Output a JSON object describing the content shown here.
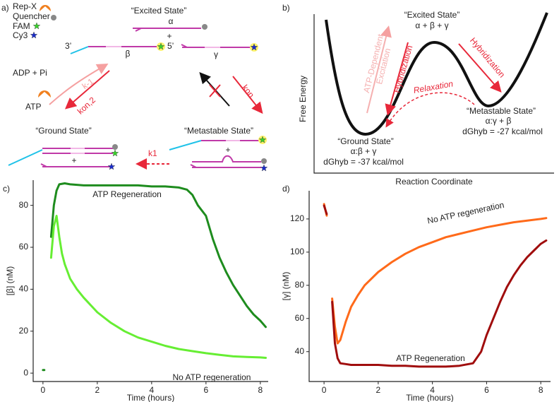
{
  "figure": {
    "panel_a": {
      "label": "a)",
      "legend": [
        "Rep-X",
        "Quencher",
        "FAM",
        "Cy3"
      ],
      "excited_state": "“Excited State”",
      "alpha": "α",
      "plus_top": "+",
      "end3": "3’",
      "beta": "β",
      "end5": "5’",
      "gamma": "γ",
      "adp": "ADP + Pi",
      "atp": "ATP",
      "k_minus1": "k-1",
      "k_on2": "kon,2",
      "k_on": "kon",
      "ground_state": "“Ground State”",
      "metastable_state": "“Metastable State”",
      "plus_left": "+",
      "plus_right": "+",
      "k_1": "k1"
    },
    "panel_b": {
      "label": "b)",
      "excited_state": "“Excited State”",
      "excited_formula": "α + β + γ",
      "excitation": [
        "ATP-Dependent",
        "Excitation"
      ],
      "hybridization_left": "Hybridization",
      "hybridization_right": "Hybridization",
      "relaxation": "Relaxation",
      "metastable_state": "“Metastable State”",
      "metastable_formula": "α:γ + β",
      "metastable_dg": "dGhyb = -27 kcal/mol",
      "ground_state": "“Ground State”",
      "ground_formula": "α:β + γ",
      "ground_dg": "dGhyb = -37 kcal/mol",
      "y_label": "Free Energy",
      "x_label": "Reaction Coordinate"
    }
  },
  "chart_data": [
    {
      "type": "line",
      "panel_label": "c)",
      "x_label": "Time (hours)",
      "y_label": "[β] (nM)",
      "xlim": [
        -0.36,
        8.29
      ],
      "ylim": [
        -4,
        92
      ],
      "xticks": [
        0,
        2,
        4,
        6,
        8
      ],
      "yticks": [
        0,
        20,
        40,
        60,
        80
      ],
      "series": [
        {
          "name": "ATP Regeneration",
          "color": "#1e8c1e",
          "x": [
            0,
            0.05,
            0.2,
            0.3,
            0.4,
            0.5,
            0.6,
            0.8,
            1,
            1.5,
            2,
            2.5,
            3,
            3.5,
            4,
            4.5,
            5,
            5.3,
            5.5,
            5.7,
            6,
            6.25,
            6.5,
            6.75,
            7,
            7.25,
            7.5,
            7.75,
            8,
            8.2
          ],
          "values": [
            1.5,
            1.5,
            null,
            65,
            80,
            87,
            90,
            90.5,
            90,
            89.5,
            89.5,
            89.5,
            89.5,
            89.5,
            89,
            89,
            88.5,
            87.5,
            85,
            80,
            75,
            64,
            55,
            48,
            42,
            37,
            32,
            28,
            25,
            22
          ]
        },
        {
          "name": "No ATP regeneration",
          "color": "#66ee33",
          "x": [
            0.3,
            0.4,
            0.5,
            0.6,
            0.7,
            0.8,
            1,
            1.25,
            1.5,
            2,
            2.5,
            3,
            3.5,
            4,
            4.5,
            5,
            5.5,
            6,
            6.5,
            7,
            7.5,
            8,
            8.2
          ],
          "values": [
            55,
            70,
            75,
            65,
            57,
            52,
            45,
            40,
            36,
            29,
            24,
            20,
            17,
            15,
            13,
            11.5,
            10.5,
            9.5,
            8.7,
            8,
            7.7,
            7.5,
            7.3
          ]
        }
      ]
    },
    {
      "type": "line",
      "panel_label": "d)",
      "x_label": "Time (hours)",
      "y_label": "[γ] (nM)",
      "xlim": [
        -0.55,
        8.36
      ],
      "ylim": [
        22,
        137
      ],
      "xticks": [
        0,
        2,
        4,
        6,
        8
      ],
      "yticks": [
        40,
        60,
        80,
        100,
        120
      ],
      "series": [
        {
          "name": "No ATP regeneration",
          "color": "#ff6a1a",
          "x": [
            0,
            0.1,
            0.2,
            0.3,
            0.4,
            0.5,
            0.6,
            0.8,
            1,
            1.25,
            1.5,
            2,
            2.5,
            3,
            3.5,
            4,
            4.5,
            5,
            5.5,
            6,
            6.5,
            7,
            7.5,
            8,
            8.2
          ],
          "values": [
            129,
            122,
            null,
            72,
            55,
            45,
            47,
            58,
            67,
            74,
            80,
            88,
            94,
            99,
            103,
            106,
            109,
            111,
            113,
            115,
            116.5,
            118,
            119,
            120,
            120.5
          ]
        },
        {
          "name": "ATP Regeneration",
          "color": "#a00d0d",
          "x": [
            0,
            0.1,
            0.2,
            0.3,
            0.4,
            0.5,
            0.6,
            0.8,
            1,
            1.5,
            2,
            2.5,
            3,
            3.5,
            4,
            4.5,
            5,
            5.5,
            5.8,
            6,
            6.25,
            6.5,
            6.75,
            7,
            7.25,
            7.5,
            7.75,
            8,
            8.2
          ],
          "values": [
            128,
            123,
            null,
            70,
            45,
            36,
            33,
            32.5,
            32,
            32,
            32,
            31.5,
            31.5,
            31,
            31,
            31,
            31.5,
            33,
            40,
            50,
            60,
            70,
            79,
            86,
            92,
            97,
            101,
            105,
            107
          ]
        }
      ]
    }
  ]
}
